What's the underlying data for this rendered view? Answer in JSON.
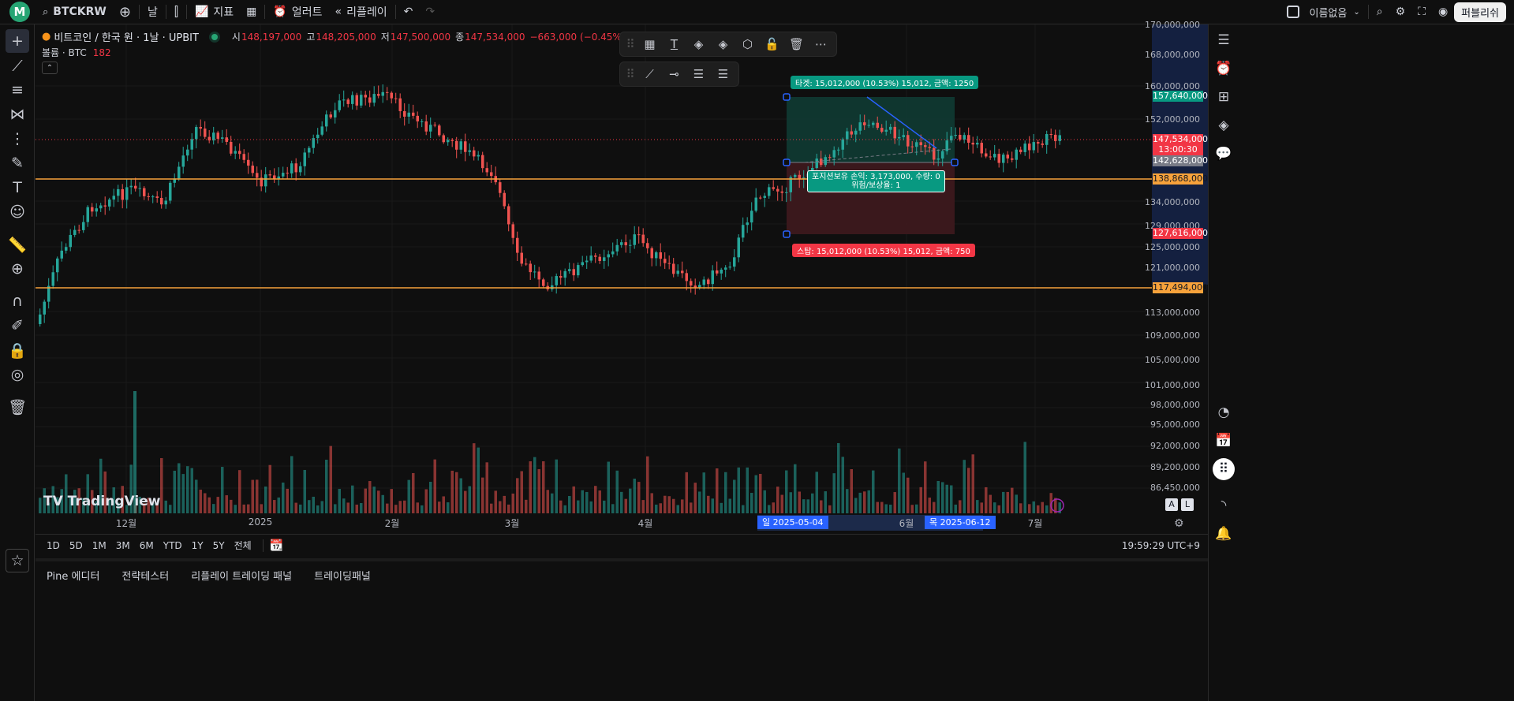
{
  "topbar": {
    "logo": "M",
    "symbol": "BTCKRW",
    "interval": "날",
    "indicators_label": "지표",
    "alert_label": "얼러트",
    "replay_label": "리플레이",
    "layout_name": "이름없음",
    "publish_label": "퍼블리쉬"
  },
  "legend": {
    "title": "비트코인 / 한국 원 · 1날 · UPBIT",
    "open_key": "시",
    "open": "148,197,000",
    "high_key": "고",
    "high": "148,205,000",
    "low_key": "저",
    "low": "147,500,000",
    "close_key": "종",
    "close": "147,534,000",
    "change": "−663,000 (−0.45%)",
    "volume_label": "볼륨 · BTC",
    "volume_value": "182"
  },
  "position": {
    "target_label": "타겟: 15,012,000 (10.53%) 15,012, 금액: 1250",
    "stop_label": "스탑: 15,012,000 (10.53%) 15,012, 금액: 750",
    "open_pl_line1": "포지션보유 손익: 3,173,000, 수량: 0",
    "open_pl_line2": "위험/보상율: 1"
  },
  "price_scale": [
    "170,000,000",
    "168,000,000",
    "160,000,000",
    "152,000,000",
    "134,000,000",
    "129,000,000",
    "125,000,000",
    "121,000,000",
    "113,000,000",
    "109,000,000",
    "105,000,000",
    "101,000,000",
    "98,000,000",
    "95,000,000",
    "92,000,000",
    "89,200,000",
    "86,450,000"
  ],
  "price_tags": {
    "target": "157,640,000",
    "current": "147,534,000",
    "countdown": "13:00:30",
    "entry": "142,628,000",
    "line1": "138,868,000",
    "stop": "127,616,000",
    "line2": "117,494,000"
  },
  "time_axis": [
    "12월",
    "2025",
    "2월",
    "3월",
    "4월",
    "6월",
    "7월"
  ],
  "time_selected": [
    "일 2025-05-04",
    "목 2025-06-12"
  ],
  "ranges": [
    "1D",
    "5D",
    "1M",
    "3M",
    "6M",
    "YTD",
    "1Y",
    "5Y",
    "전체"
  ],
  "clock": "19:59:29 UTC+9",
  "watermark": "TradingView",
  "bottom_tabs": [
    "Pine 에디터",
    "전략테스터",
    "리플레이 트레이딩 패널",
    "트레이딩패널"
  ],
  "scale_buttons": [
    "A",
    "L"
  ],
  "colors": {
    "up": "#26a69a",
    "down": "#ef5350",
    "hline": "#f7a23b",
    "target_fill": "#0f3b33",
    "stop_fill": "#3f1a1e",
    "accent": "#2962ff"
  }
}
